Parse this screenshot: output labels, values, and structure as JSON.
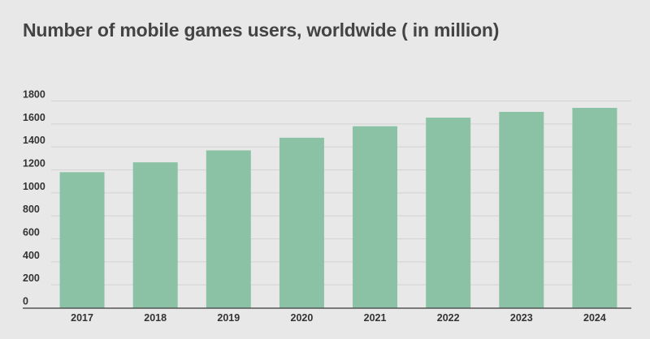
{
  "chart_data": {
    "type": "bar",
    "title": "Number of mobile games users, worldwide ( in million)",
    "xlabel": "",
    "ylabel": "",
    "categories": [
      "2017",
      "2018",
      "2019",
      "2020",
      "2021",
      "2022",
      "2023",
      "2024"
    ],
    "values": [
      1180,
      1266,
      1370,
      1480,
      1580,
      1655,
      1705,
      1740
    ],
    "ylim": [
      0,
      1800
    ],
    "yticks": [
      0,
      200,
      400,
      600,
      800,
      1000,
      1200,
      1400,
      1600,
      1800
    ],
    "grid": true,
    "legend": "none",
    "bar_color": "#8bc2a6"
  }
}
